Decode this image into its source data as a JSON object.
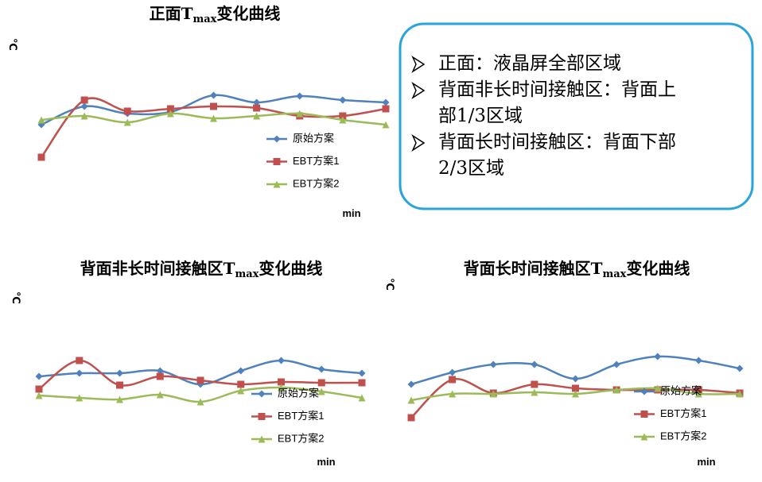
{
  "chart_data": [
    {
      "type": "line",
      "title": [
        "正面T",
        "max",
        "变化曲线"
      ],
      "y_label": "℃",
      "x_label": "min",
      "categories": [
        null,
        null,
        null,
        null,
        null,
        null,
        null,
        null,
        null
      ],
      "ylim": [
        0,
        130
      ],
      "series": [
        {
          "name": "原始方案",
          "color": "#4f81bd",
          "marker": "diamond",
          "values": [
            73,
            96,
            87,
            89,
            110,
            101,
            109,
            104,
            101
          ]
        },
        {
          "name": "EBT方案1",
          "color": "#c0504d",
          "marker": "square",
          "values": [
            32,
            104,
            90,
            93,
            96,
            94,
            84,
            84,
            93
          ]
        },
        {
          "name": "EBT方案2",
          "color": "#9bbb59",
          "marker": "triangle",
          "values": [
            79,
            84,
            76,
            87,
            81,
            84,
            87,
            79,
            73
          ]
        }
      ]
    },
    {
      "type": "line",
      "title": [
        "背面非长时间接触区T",
        "max",
        "变化曲线"
      ],
      "y_label": "℃",
      "x_label": "min",
      "categories": [
        null,
        null,
        null,
        null,
        null,
        null,
        null,
        null,
        null
      ],
      "ylim": [
        0,
        130
      ],
      "series": [
        {
          "name": "原始方案",
          "color": "#4f81bd",
          "marker": "diamond",
          "values": [
            86,
            90,
            90,
            93,
            76,
            93,
            106,
            95,
            90
          ]
        },
        {
          "name": "EBT方案1",
          "color": "#c0504d",
          "marker": "square",
          "values": [
            70,
            106,
            75,
            86,
            81,
            76,
            79,
            78,
            78
          ]
        },
        {
          "name": "EBT方案2",
          "color": "#9bbb59",
          "marker": "triangle",
          "values": [
            62,
            59,
            57,
            63,
            54,
            68,
            72,
            67,
            59
          ]
        }
      ]
    },
    {
      "type": "line",
      "title": [
        "背面长时间接触区T",
        "max",
        "变化曲线"
      ],
      "y_label": "℃",
      "x_label": "min",
      "categories": [
        null,
        null,
        null,
        null,
        null,
        null,
        null,
        null,
        null
      ],
      "ylim": [
        0,
        130
      ],
      "series": [
        {
          "name": "原始方案",
          "color": "#4f81bd",
          "marker": "diamond",
          "values": [
            76,
            91,
            101,
            101,
            83,
            101,
            111,
            106,
            96
          ]
        },
        {
          "name": "EBT方案1",
          "color": "#c0504d",
          "marker": "square",
          "values": [
            34,
            82,
            65,
            76,
            71,
            69,
            69,
            69,
            65
          ]
        },
        {
          "name": "EBT方案2",
          "color": "#9bbb59",
          "marker": "triangle",
          "values": [
            56,
            64,
            64,
            66,
            64,
            69,
            71,
            64,
            64
          ]
        }
      ]
    }
  ],
  "note_box": {
    "items": [
      [
        "正面：液晶屏全部区域"
      ],
      [
        "背面非长时间接触区：背面上",
        "部1/3区域"
      ],
      [
        "背面长时间接触区：背面下部",
        "2/3区域"
      ]
    ]
  }
}
